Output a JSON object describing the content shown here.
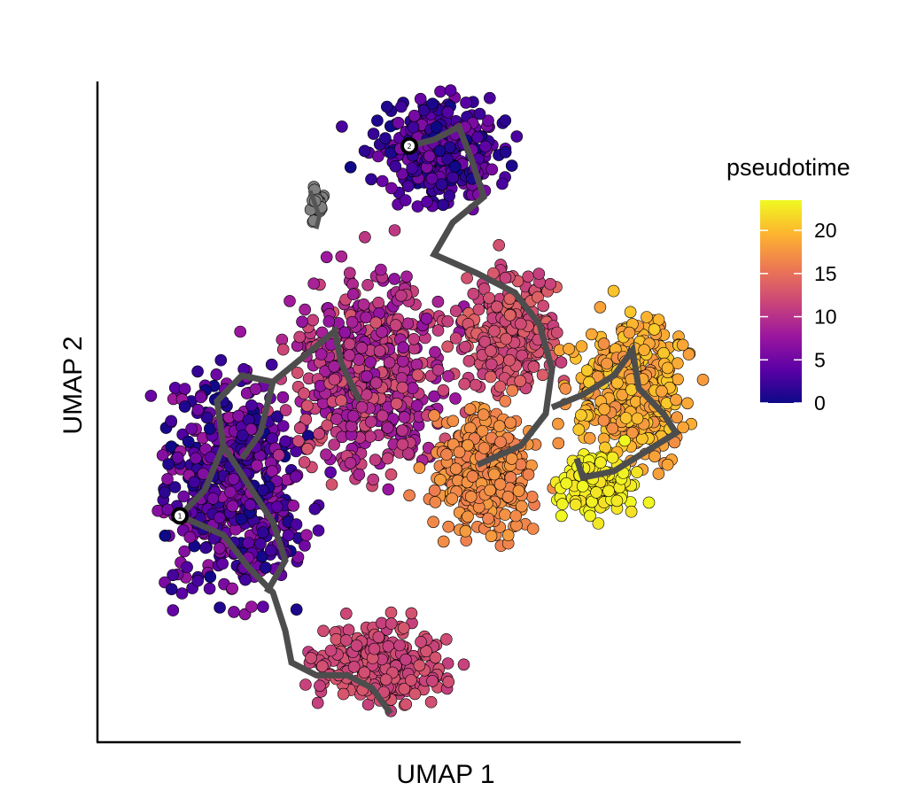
{
  "chart_data": {
    "type": "scatter",
    "title": "",
    "xlabel": "UMAP 1",
    "ylabel": "UMAP 2",
    "x_ticks_shown": false,
    "y_ticks_shown": false,
    "grid": false,
    "legend": {
      "title": "pseudotime",
      "type": "colorbar",
      "placement": "right",
      "range": [
        0,
        23.5
      ],
      "ticks": [
        0,
        5,
        10,
        15,
        20
      ],
      "tick_labels": [
        "0",
        "5",
        "10",
        "15",
        "20"
      ],
      "colors": [
        "#0d0887",
        "#5c01a6",
        "#9c179e",
        "#cc4778",
        "#ed7953",
        "#fdb42f",
        "#f0f921"
      ]
    },
    "unassigned_color": "#808080",
    "trajectory_color": "#4d4d4d",
    "root_nodes": [
      {
        "label": "2",
        "x": 4.6,
        "y": 9.1
      },
      {
        "label": "1",
        "x": 0.9,
        "y": 3.3
      }
    ],
    "regions": [
      {
        "name": "top-cluster",
        "pseudotime_range": [
          0,
          6
        ],
        "center": [
          5.1,
          9.0
        ]
      },
      {
        "name": "left-cluster",
        "pseudotime_range": [
          0,
          8
        ],
        "center": [
          1.8,
          3.8
        ]
      },
      {
        "name": "central-band",
        "pseudotime_range": [
          7,
          13
        ],
        "center": [
          4.0,
          5.5
        ]
      },
      {
        "name": "bottom-lobe",
        "pseudotime_range": [
          11,
          13
        ],
        "center": [
          4.1,
          1.0
        ]
      },
      {
        "name": "right-arc",
        "pseudotime_range": [
          11,
          14
        ],
        "center": [
          6.2,
          6.2
        ]
      },
      {
        "name": "mid-orange",
        "pseudotime_range": [
          16,
          18
        ],
        "center": [
          5.8,
          4.0
        ]
      },
      {
        "name": "right-cluster",
        "pseudotime_range": [
          17,
          21
        ],
        "center": [
          8.2,
          5.3
        ]
      },
      {
        "name": "yellow-tip",
        "pseudotime_range": [
          22,
          23.5
        ],
        "center": [
          7.6,
          3.8
        ]
      },
      {
        "name": "gray-small",
        "pseudotime_range": null,
        "center": [
          3.1,
          8.2
        ]
      }
    ]
  }
}
